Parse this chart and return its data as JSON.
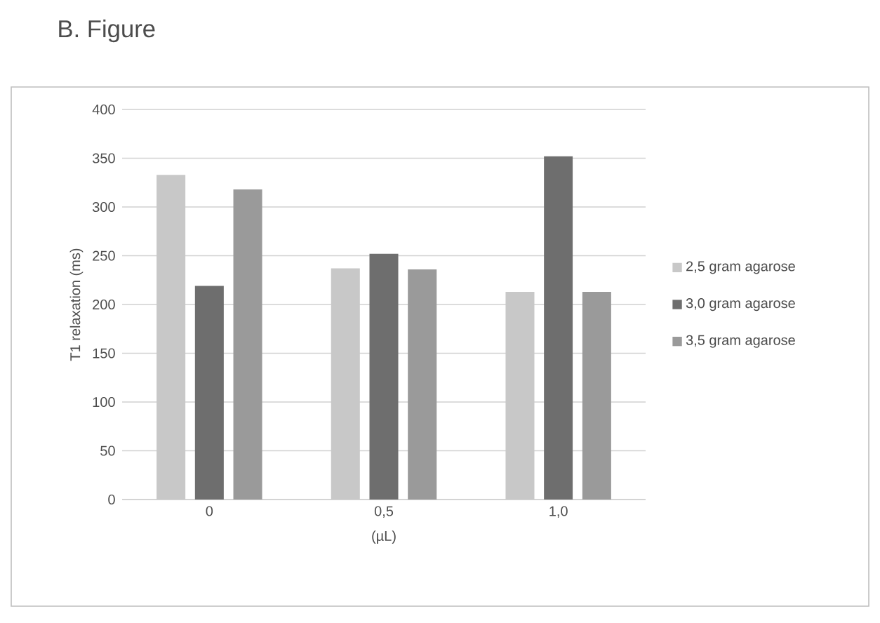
{
  "chart_data": {
    "type": "bar",
    "title": "B.  Figure",
    "categories": [
      "0",
      "0,5",
      "1,0"
    ],
    "series": [
      {
        "name": "2,5 gram agarose",
        "color": "#c8c8c8",
        "values": [
          333,
          237,
          213
        ]
      },
      {
        "name": "3,0 gram agarose",
        "color": "#6e6e6e",
        "values": [
          219,
          252,
          352
        ]
      },
      {
        "name": "3,5 gram agarose",
        "color": "#9a9a9a",
        "values": [
          318,
          236,
          213
        ]
      }
    ],
    "xlabel": "(µL)",
    "ylabel": "T1 relaxation (ms)",
    "ylim": [
      0,
      400
    ],
    "yticks": [
      0,
      50,
      100,
      150,
      200,
      250,
      300,
      350,
      400
    ],
    "grid": "y",
    "legend": "right"
  }
}
